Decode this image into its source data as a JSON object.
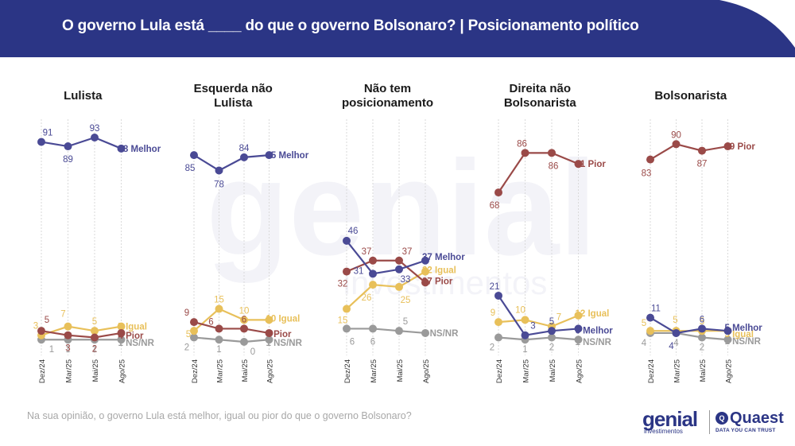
{
  "header": {
    "title": "O governo Lula está ____ do que o governo Bolsonaro? | Posicionamento político",
    "background_color": "#2b3585"
  },
  "footer": {
    "question": "Na sua opinião, o governo Lula está melhor, igual ou pior do que o governo Bolsonaro?"
  },
  "logos": {
    "genial": "genial",
    "genial_sub": "investimentos",
    "quaest": "Quaest",
    "quaest_badge": "Q",
    "quaest_sub": "DATA YOU CAN TRUST"
  },
  "colors": {
    "melhor": "#4a4a95",
    "pior": "#9a4a48",
    "igual": "#e8c05a",
    "nsnr": "#9a9a9a"
  },
  "chart_data": [
    {
      "type": "line",
      "title": [
        "Lulista"
      ],
      "categories": [
        "Dez/24",
        "Mar/25",
        "Mai/25",
        "Ago/25"
      ],
      "series": [
        {
          "name": "Melhor",
          "key": "melhor",
          "values": [
            91,
            89,
            93,
            88
          ],
          "end_label": "88 Melhor"
        },
        {
          "name": "Igual",
          "key": "igual",
          "values": [
            3,
            7,
            5,
            7
          ],
          "end_label": "7 Igual"
        },
        {
          "name": "Pior",
          "key": "pior",
          "values": [
            5,
            3,
            2,
            4
          ],
          "end_label": "4 Pior"
        },
        {
          "name": "NS/NR",
          "key": "nsnr",
          "values": [
            1,
            1,
            1,
            1
          ],
          "end_label": "1 NS/NR"
        }
      ]
    },
    {
      "type": "line",
      "title": [
        "Esquerda não",
        "Lulista"
      ],
      "categories": [
        "Dez/24",
        "Mar/25",
        "Mai/25",
        "Ago/25"
      ],
      "series": [
        {
          "name": "Melhor",
          "key": "melhor",
          "values": [
            85,
            78,
            84,
            85
          ],
          "end_label": "85 Melhor"
        },
        {
          "name": "Igual",
          "key": "igual",
          "values": [
            5,
            15,
            10,
            10
          ],
          "end_label": "10 Igual"
        },
        {
          "name": "Pior",
          "key": "pior",
          "values": [
            9,
            6,
            6,
            4
          ],
          "end_label": "4 Pior"
        },
        {
          "name": "NS/NR",
          "key": "nsnr",
          "values": [
            2,
            1,
            0,
            1
          ],
          "end_label": "1 NS/NR"
        }
      ]
    },
    {
      "type": "line",
      "title": [
        "Não tem",
        "posicionamento"
      ],
      "categories": [
        "Dez/24",
        "Mar/25",
        "Mai/25",
        "Ago/25"
      ],
      "series": [
        {
          "name": "Melhor",
          "key": "melhor",
          "values": [
            46,
            31,
            33,
            37
          ],
          "end_label": "37 Melhor"
        },
        {
          "name": "Pior",
          "key": "pior",
          "values": [
            32,
            37,
            37,
            27
          ],
          "end_label": "27 Pior"
        },
        {
          "name": "Igual",
          "key": "igual",
          "values": [
            15,
            26,
            25,
            32
          ],
          "end_label": "32 Igual"
        },
        {
          "name": "NS/NR",
          "key": "nsnr",
          "values": [
            6,
            6,
            5,
            4
          ],
          "end_label": "4 NS/NR"
        }
      ]
    },
    {
      "type": "line",
      "title": [
        "Direita não",
        "Bolsonarista"
      ],
      "categories": [
        "Dez/24",
        "Mar/25",
        "Mai/25",
        "Ago/25"
      ],
      "series": [
        {
          "name": "Pior",
          "key": "pior",
          "values": [
            68,
            86,
            86,
            81
          ],
          "end_label": "81 Pior"
        },
        {
          "name": "Melhor",
          "key": "melhor",
          "values": [
            21,
            3,
            5,
            6
          ],
          "end_label": "6 Melhor"
        },
        {
          "name": "Igual",
          "key": "igual",
          "values": [
            9,
            10,
            7,
            12
          ],
          "end_label": "12 Igual"
        },
        {
          "name": "NS/NR",
          "key": "nsnr",
          "values": [
            2,
            1,
            2,
            1
          ],
          "end_label": "1 NS/NR"
        }
      ]
    },
    {
      "type": "line",
      "title": [
        "Bolsonarista"
      ],
      "categories": [
        "Dez/24",
        "Mar/25",
        "Mai/25",
        "Ago/25"
      ],
      "series": [
        {
          "name": "Pior",
          "key": "pior",
          "values": [
            83,
            90,
            87,
            89
          ],
          "end_label": "89 Pior"
        },
        {
          "name": "Melhor",
          "key": "melhor",
          "values": [
            11,
            4,
            6,
            5
          ],
          "end_label": "5 Melhor"
        },
        {
          "name": "Igual",
          "key": "igual",
          "values": [
            5,
            5,
            5,
            5
          ],
          "end_label": "5 Igual"
        },
        {
          "name": "NS/NR",
          "key": "nsnr",
          "values": [
            4,
            4,
            2,
            1
          ],
          "end_label": "1 NS/NR"
        }
      ]
    }
  ]
}
